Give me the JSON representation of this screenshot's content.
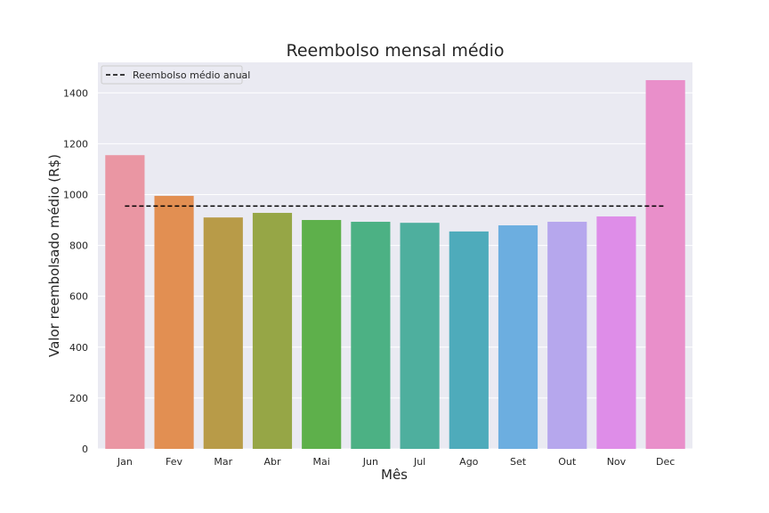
{
  "chart_data": {
    "type": "bar",
    "title": "Reembolso mensal médio",
    "xlabel": "Mês",
    "ylabel": "Valor reembolsado médio (R$)",
    "categories": [
      "Jan",
      "Fev",
      "Mar",
      "Abr",
      "Mai",
      "Jun",
      "Jul",
      "Ago",
      "Set",
      "Out",
      "Nov",
      "Dec"
    ],
    "values": [
      1155,
      995,
      910,
      928,
      900,
      893,
      889,
      855,
      879,
      893,
      914,
      1450
    ],
    "colors": [
      "#ea96a3",
      "#e28f52",
      "#b89b48",
      "#96a646",
      "#5eb04b",
      "#4cb184",
      "#4eaf9e",
      "#4eabbb",
      "#6caee0",
      "#b6a7ed",
      "#de8de8",
      "#e98fca"
    ],
    "ylim": [
      0,
      1520
    ],
    "yticks": [
      0,
      200,
      400,
      600,
      800,
      1000,
      1200,
      1400
    ],
    "grid": true,
    "reference_line": {
      "label": "Reembolso médio anual",
      "value": 955,
      "style": "dashed",
      "color": "#000000"
    },
    "legend_position": "top-left",
    "background": "#eaeaf2"
  }
}
